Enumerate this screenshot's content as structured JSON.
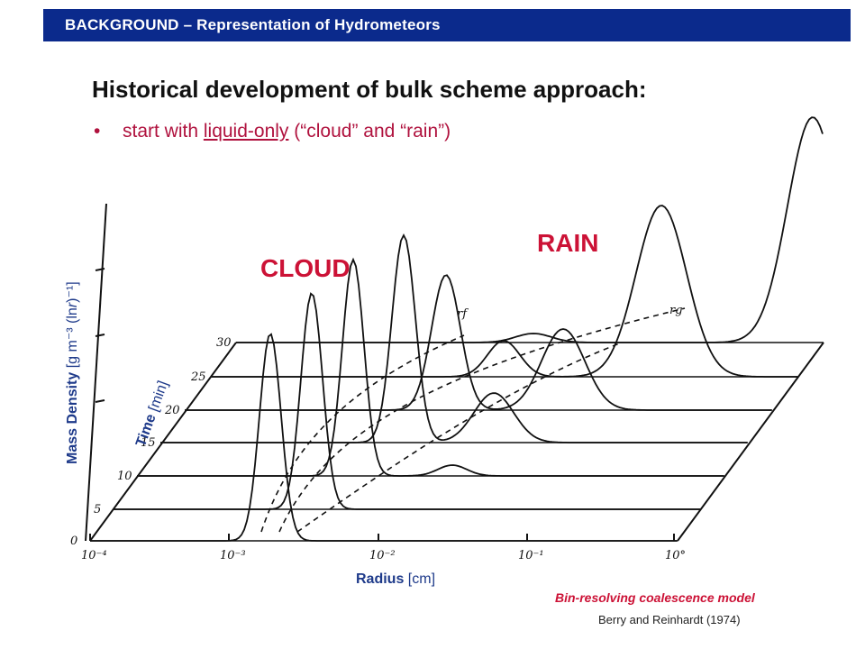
{
  "header": {
    "title": "BACKGROUND – Representation of Hydrometeors"
  },
  "slide": {
    "title": "Historical development of bulk scheme approach:",
    "bullet": {
      "prefix": "start with ",
      "underlined": "liquid-only",
      "suffix": " (“cloud” and “rain”)"
    }
  },
  "figure": {
    "cloud_label": "CLOUD",
    "rain_label": "RAIN",
    "y_axis": {
      "bold": "Mass Density",
      "unit": " [g m⁻³ (ln",
      "r": "r",
      "unit_end": ")⁻¹]"
    },
    "time_axis": {
      "bold": "Time",
      "unit": " [min]"
    },
    "x_axis": {
      "bold": "Radius",
      "unit": " [cm]"
    },
    "time_ticks": [
      "0",
      "5",
      "10",
      "15",
      "20",
      "25",
      "30"
    ],
    "radius_ticks": [
      "10⁻⁴",
      "10⁻³",
      "10⁻²",
      "10⁻¹",
      "10°"
    ],
    "marker_rf": "r_f",
    "marker_rg": "r_g"
  },
  "caption": {
    "title": "Bin-resolving coalescence model",
    "source": "Berry and Reinhardt (1974)"
  }
}
